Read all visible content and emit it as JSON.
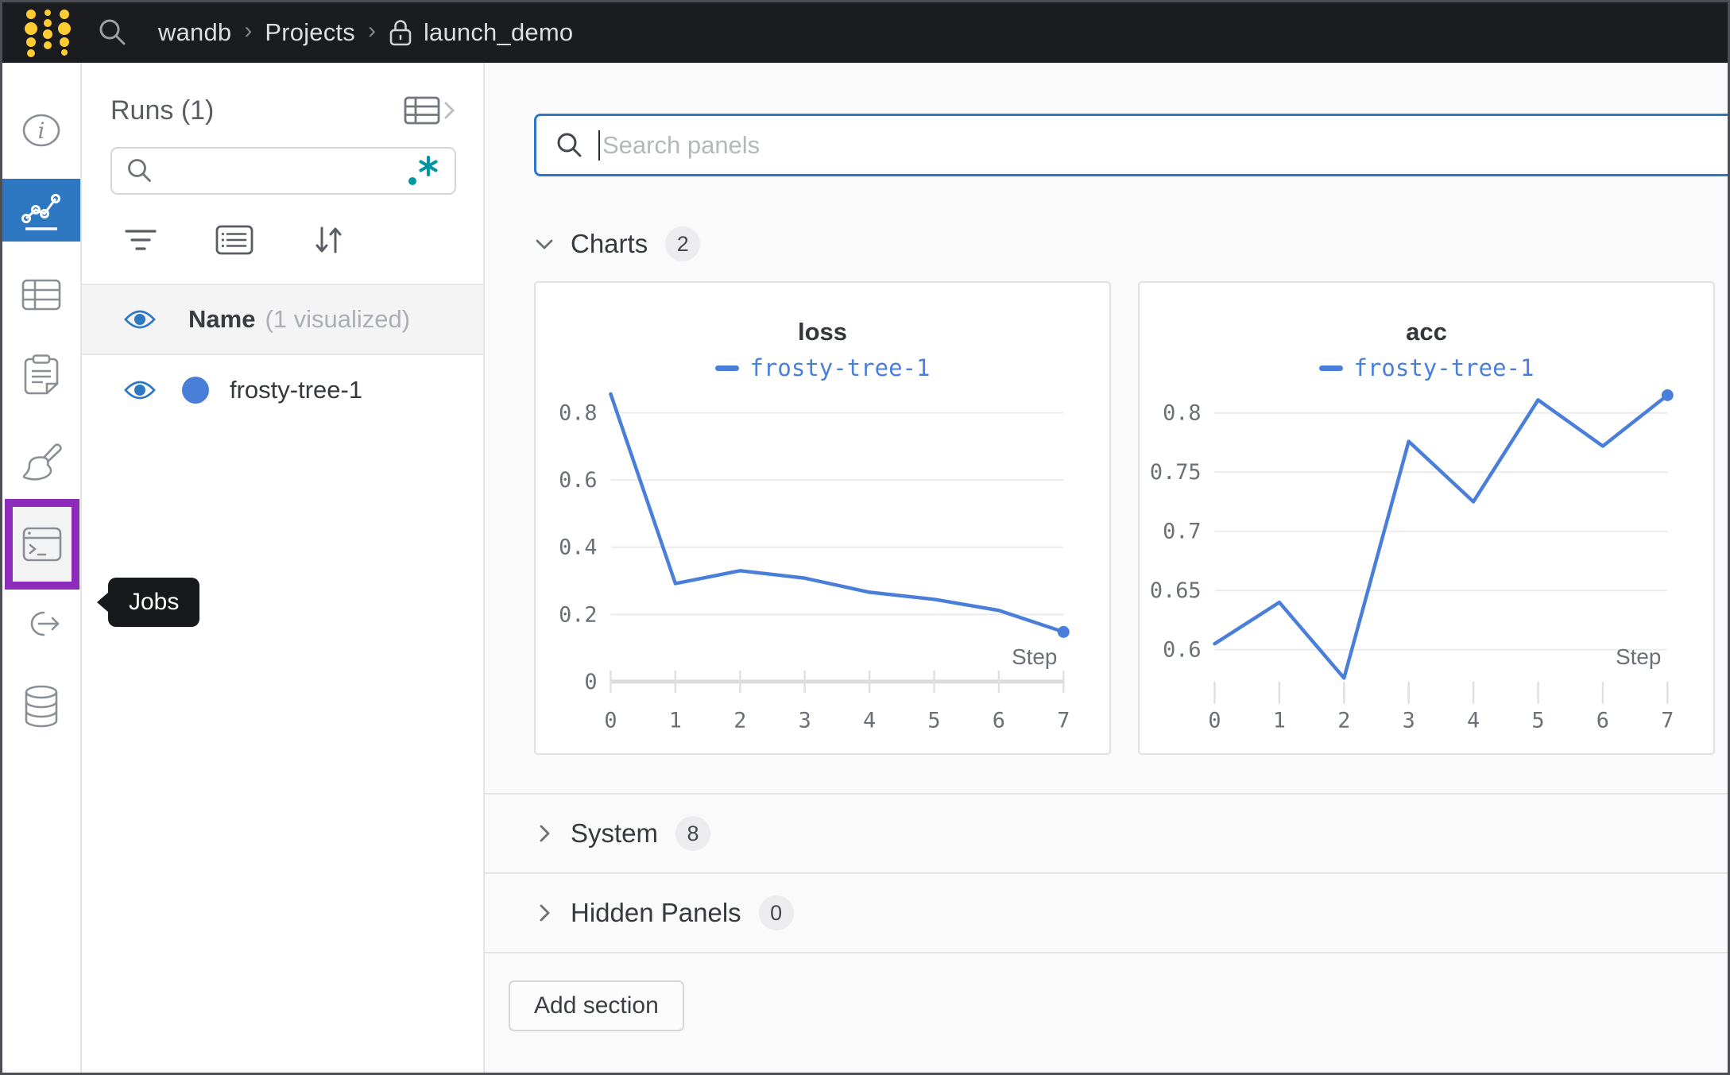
{
  "topbar": {
    "breadcrumb": {
      "team": "wandb",
      "section": "Projects",
      "project": "launch_demo"
    },
    "separator": "›"
  },
  "sidebar": {
    "items": [
      {
        "id": "overview",
        "icon": "info-icon",
        "active": false
      },
      {
        "id": "charts",
        "icon": "line-chart-icon",
        "active": true
      },
      {
        "id": "table",
        "icon": "table-icon",
        "active": false
      },
      {
        "id": "notes",
        "icon": "clipboard-icon",
        "active": false
      },
      {
        "id": "sweeps",
        "icon": "broom-icon",
        "active": false
      },
      {
        "id": "jobs",
        "icon": "terminal-icon",
        "active": false,
        "highlighted": true
      },
      {
        "id": "launch",
        "icon": "link-out-icon",
        "active": false
      },
      {
        "id": "artifacts",
        "icon": "database-icon",
        "active": false
      }
    ],
    "tooltip": "Jobs",
    "highlight_color": "#8d2cba",
    "active_color": "#2e78c2"
  },
  "runs_panel": {
    "title": "Runs (1)",
    "search": {
      "value": "",
      "placeholder": "",
      "regex_icon": ".*",
      "regex_color": "#0096a0"
    },
    "header_row": {
      "label": "Name",
      "suffix": "(1 visualized)"
    },
    "runs": [
      {
        "name": "frosty-tree-1",
        "color": "#4a7fd9",
        "visible": true
      }
    ]
  },
  "main": {
    "search": {
      "value": "",
      "placeholder": "Search panels"
    },
    "sections": [
      {
        "label": "Charts",
        "count": "2",
        "expanded": true
      },
      {
        "label": "System",
        "count": "8",
        "expanded": false
      },
      {
        "label": "Hidden Panels",
        "count": "0",
        "expanded": false
      }
    ],
    "add_section_label": "Add section"
  },
  "chart_data": [
    {
      "type": "line",
      "title": "loss",
      "x": [
        0,
        1,
        2,
        3,
        4,
        5,
        6,
        7
      ],
      "series": [
        {
          "name": "frosty-tree-1",
          "color": "#4a7fd9",
          "values": [
            0.856,
            0.292,
            0.33,
            0.308,
            0.266,
            0.245,
            0.212,
            0.148
          ]
        }
      ],
      "xlabel": "Step",
      "yticks": [
        0,
        0.2,
        0.4,
        0.6,
        0.8
      ],
      "ylim": [
        0,
        0.87
      ],
      "baseline_at_zero": true,
      "grid": true,
      "legend_position": "top",
      "end_marker": true
    },
    {
      "type": "line",
      "title": "acc",
      "x": [
        0,
        1,
        2,
        3,
        4,
        5,
        6,
        7
      ],
      "series": [
        {
          "name": "frosty-tree-1",
          "color": "#4a7fd9",
          "values": [
            0.605,
            0.64,
            0.576,
            0.776,
            0.725,
            0.811,
            0.772,
            0.815
          ]
        }
      ],
      "xlabel": "Step",
      "yticks": [
        0.6,
        0.65,
        0.7,
        0.75,
        0.8
      ],
      "ylim": [
        0.573,
        0.82
      ],
      "baseline_at_zero": false,
      "grid": true,
      "legend_position": "top",
      "end_marker": true
    }
  ],
  "colors": {
    "topbar_bg": "#1a1c1f",
    "logo_yellow": "#ffcc33",
    "accent_blue": "#2e78c2",
    "focus_border": "#2c77c6",
    "line_blue": "#4a7fd9",
    "highlight_purple": "#8d2cba",
    "regex_teal": "#0096a0"
  }
}
